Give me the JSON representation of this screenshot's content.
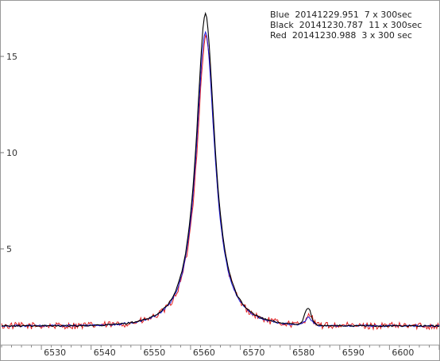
{
  "chart_data": {
    "type": "line",
    "title": "",
    "xlabel": "",
    "ylabel": "",
    "xlim": [
      6522,
      6610
    ],
    "ylim": [
      0.0,
      17.6
    ],
    "x_ticks": [
      6530,
      6540,
      6550,
      6560,
      6570,
      6580,
      6590,
      6600
    ],
    "y_ticks": [
      5,
      10,
      15
    ],
    "grid": false,
    "legend_position": "top-right",
    "legend": [
      {
        "label": "Blue",
        "date": "20141229.951",
        "exposure": "7 x 300sec",
        "color": "#1a1ad9"
      },
      {
        "label": "Black",
        "date": "20141230.787",
        "exposure": "11 x 300sec",
        "color": "#000000"
      },
      {
        "label": "Red",
        "date": "20141230.988",
        "exposure": "3 x 300 sec",
        "color": "#e02020"
      }
    ],
    "series": [
      {
        "name": "Blue",
        "color": "#1a1ad9",
        "peak_x": 6563.0,
        "peak_y": 16.3,
        "secondary_peak_x": 6583.7,
        "secondary_peak_y": 1.4,
        "continuum": 1.0,
        "noise": 0.05
      },
      {
        "name": "Black",
        "color": "#000000",
        "peak_x": 6563.0,
        "peak_y": 17.2,
        "secondary_peak_x": 6583.6,
        "secondary_peak_y": 1.9,
        "continuum": 1.0,
        "noise": 0.04
      },
      {
        "name": "Red",
        "color": "#e02020",
        "peak_x": 6563.1,
        "peak_y": 16.0,
        "secondary_peak_x": 6583.8,
        "secondary_peak_y": 1.6,
        "continuum": 1.0,
        "noise": 0.18
      }
    ]
  }
}
